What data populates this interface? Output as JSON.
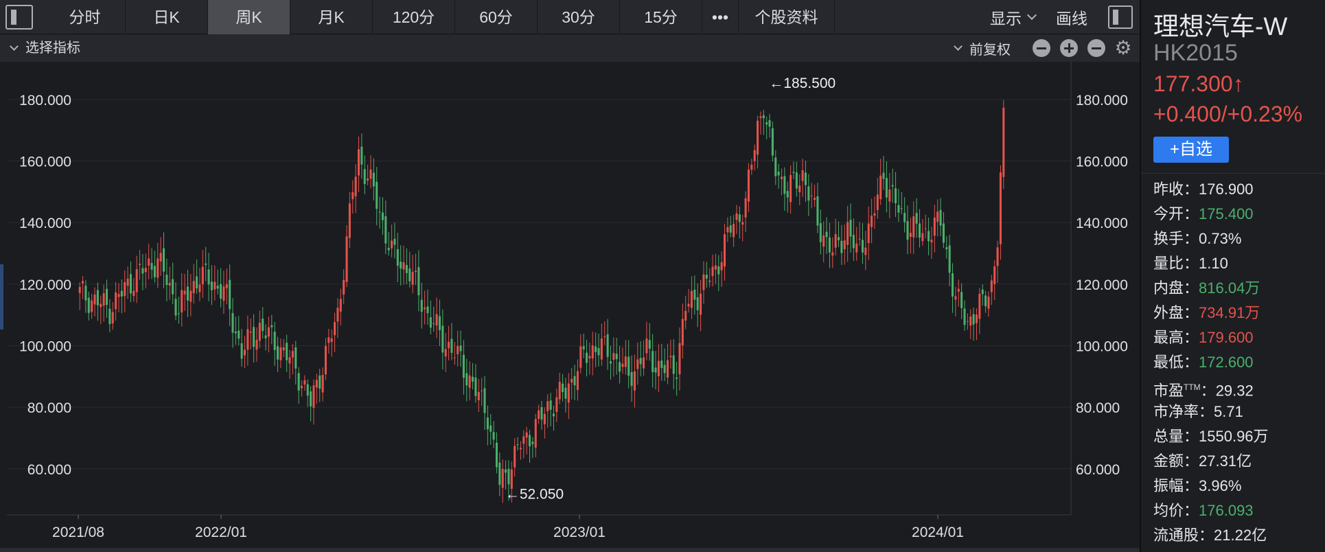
{
  "toolbar": {
    "tabs": [
      {
        "label": "分时",
        "w": 118
      },
      {
        "label": "日K",
        "w": 120
      },
      {
        "label": "周K",
        "w": 120,
        "active": true
      },
      {
        "label": "月K",
        "w": 120
      },
      {
        "label": "120分",
        "w": 120
      },
      {
        "label": "60分",
        "w": 120
      },
      {
        "label": "30分",
        "w": 120
      },
      {
        "label": "15分",
        "w": 120
      },
      {
        "label": "•••",
        "w": 53
      },
      {
        "label": "个股资料",
        "w": 140
      }
    ],
    "display_label": "显示",
    "draw_label": "画线"
  },
  "subbar": {
    "indicator_label": "选择指标",
    "adjust_label": "前复权"
  },
  "chart_data": {
    "type": "candlestick",
    "ylim": [
      45,
      190
    ],
    "yticks": [
      "60.000",
      "80.000",
      "100.000",
      "120.000",
      "140.000",
      "160.000",
      "180.000"
    ],
    "xticks": [
      "2021/08",
      "2022/01",
      "2023/01",
      "2024/01"
    ],
    "annotations": {
      "high": "←185.500",
      "low": "←52.050"
    },
    "up_color": "#e5534b",
    "down_color": "#4bb06c"
  },
  "panel": {
    "name": "理想汽车-W",
    "code": "HK2015",
    "price": "177.300↑",
    "change": "+0.400/+0.23%",
    "watch_button": "+自选",
    "stats": [
      {
        "k": "昨收：",
        "v": "176.900",
        "c": ""
      },
      {
        "k": "今开：",
        "v": "175.400",
        "c": "green"
      },
      {
        "k": "换手：",
        "v": "0.73%",
        "c": ""
      },
      {
        "k": "量比：",
        "v": "1.10",
        "c": ""
      },
      {
        "k": "内盘：",
        "v": "816.04万",
        "c": "green"
      },
      {
        "k": "外盘：",
        "v": "734.91万",
        "c": "red"
      },
      {
        "k": "最高：",
        "v": "179.600",
        "c": "red"
      },
      {
        "k": "最低：",
        "v": "172.600",
        "c": "green"
      },
      {
        "k": "市盈",
        "sup": "TTM",
        "k2": "：",
        "v": "29.32",
        "c": ""
      },
      {
        "k": "市净率：",
        "v": "5.71",
        "c": ""
      },
      {
        "k": "总量：",
        "v": "1550.96万",
        "c": ""
      },
      {
        "k": "金额：",
        "v": "27.31亿",
        "c": ""
      },
      {
        "k": "振幅：",
        "v": "3.96%",
        "c": ""
      },
      {
        "k": "均价：",
        "v": "176.093",
        "c": "green"
      },
      {
        "k": "流通股：",
        "v": "21.22亿",
        "c": ""
      }
    ]
  }
}
